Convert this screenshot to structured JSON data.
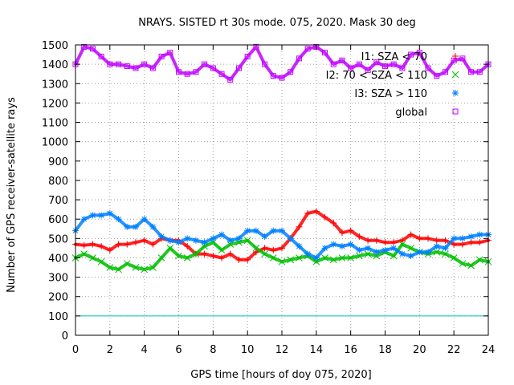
{
  "chart_data": {
    "type": "scatter",
    "title": "NRAYS. SISTED rt 30s mode. 075, 2020. Mask 30 deg",
    "xlabel": "GPS time [hours of doy 075, 2020]",
    "ylabel": "Number of GPS receiver-satellite rays",
    "xlim": [
      0,
      24
    ],
    "ylim": [
      0,
      1500
    ],
    "x_ticks": [
      0,
      2,
      4,
      6,
      8,
      10,
      12,
      14,
      16,
      18,
      20,
      22,
      24
    ],
    "y_ticks": [
      0,
      100,
      200,
      300,
      400,
      500,
      600,
      700,
      800,
      900,
      1000,
      1100,
      1200,
      1300,
      1400,
      1500
    ],
    "x_tick_labels": [
      "0",
      "2",
      "4",
      "6",
      "8",
      "10",
      "12",
      "14",
      "16",
      "18",
      "20",
      "22",
      "24"
    ],
    "y_tick_labels": [
      "0",
      "100",
      "200",
      "300",
      "400",
      "500",
      "600",
      "700",
      "800",
      "900",
      "1000",
      "1100",
      "1200",
      "1300",
      "1400",
      "1500"
    ],
    "grid": true,
    "legend_position": "top-right",
    "series": [
      {
        "name": "I1: SZA < 70",
        "color": "#ff0000",
        "marker": "plus",
        "x": [
          0,
          0.5,
          1,
          1.5,
          2,
          2.5,
          3,
          3.5,
          4,
          4.5,
          5,
          5.5,
          6,
          6.5,
          7,
          7.5,
          8,
          8.5,
          9,
          9.5,
          10,
          10.5,
          11,
          11.5,
          12,
          12.5,
          13,
          13.5,
          14,
          14.5,
          15,
          15.5,
          16,
          16.5,
          17,
          17.5,
          18,
          18.5,
          19,
          19.5,
          20,
          20.5,
          21,
          21.5,
          22,
          22.5,
          23,
          23.5,
          24
        ],
        "y": [
          470,
          465,
          470,
          460,
          440,
          470,
          470,
          480,
          490,
          470,
          500,
          490,
          490,
          460,
          420,
          420,
          410,
          400,
          420,
          390,
          390,
          430,
          450,
          440,
          450,
          500,
          560,
          630,
          640,
          610,
          580,
          530,
          540,
          510,
          490,
          490,
          480,
          480,
          490,
          520,
          500,
          500,
          490,
          490,
          470,
          470,
          480,
          480,
          490
        ]
      },
      {
        "name": "I2: 70 < SZA < 110",
        "color": "#00c000",
        "marker": "cross",
        "x": [
          0,
          0.5,
          1,
          1.5,
          2,
          2.5,
          3,
          3.5,
          4,
          4.5,
          5,
          5.5,
          6,
          6.5,
          7,
          7.5,
          8,
          8.5,
          9,
          9.5,
          10,
          10.5,
          11,
          11.5,
          12,
          12.5,
          13,
          13.5,
          14,
          14.5,
          15,
          15.5,
          16,
          16.5,
          17,
          17.5,
          18,
          18.5,
          19,
          19.5,
          20,
          20.5,
          21,
          21.5,
          22,
          22.5,
          23,
          23.5,
          24
        ],
        "y": [
          400,
          420,
          400,
          380,
          350,
          340,
          370,
          350,
          340,
          350,
          400,
          450,
          410,
          400,
          420,
          460,
          480,
          440,
          470,
          480,
          490,
          450,
          420,
          400,
          380,
          390,
          400,
          410,
          380,
          400,
          390,
          400,
          400,
          410,
          420,
          410,
          430,
          410,
          470,
          450,
          430,
          420,
          430,
          420,
          400,
          370,
          360,
          390,
          380
        ]
      },
      {
        "name": "I3: SZA > 110",
        "color": "#0080ff",
        "marker": "star",
        "x": [
          0,
          0.5,
          1,
          1.5,
          2,
          2.5,
          3,
          3.5,
          4,
          4.5,
          5,
          5.5,
          6,
          6.5,
          7,
          7.5,
          8,
          8.5,
          9,
          9.5,
          10,
          10.5,
          11,
          11.5,
          12,
          12.5,
          13,
          13.5,
          14,
          14.5,
          15,
          15.5,
          16,
          16.5,
          17,
          17.5,
          18,
          18.5,
          19,
          19.5,
          20,
          20.5,
          21,
          21.5,
          22,
          22.5,
          23,
          23.5,
          24
        ],
        "y": [
          540,
          600,
          620,
          620,
          630,
          600,
          560,
          560,
          600,
          560,
          510,
          490,
          480,
          500,
          490,
          480,
          500,
          520,
          490,
          500,
          540,
          540,
          510,
          540,
          540,
          500,
          460,
          420,
          400,
          450,
          470,
          460,
          470,
          440,
          450,
          430,
          440,
          450,
          420,
          410,
          430,
          430,
          460,
          450,
          500,
          500,
          510,
          520,
          520
        ]
      },
      {
        "name": "global",
        "color": "#c000ff",
        "marker": "square",
        "x": [
          0,
          0.5,
          1,
          1.5,
          2,
          2.5,
          3,
          3.5,
          4,
          4.5,
          5,
          5.5,
          6,
          6.5,
          7,
          7.5,
          8,
          8.5,
          9,
          9.5,
          10,
          10.5,
          11,
          11.5,
          12,
          12.5,
          13,
          13.5,
          14,
          14.5,
          15,
          15.5,
          16,
          16.5,
          17,
          17.5,
          18,
          18.5,
          19,
          19.5,
          20,
          20.5,
          21,
          21.5,
          22,
          22.5,
          23,
          23.5,
          24
        ],
        "y": [
          1400,
          1490,
          1480,
          1440,
          1400,
          1400,
          1390,
          1380,
          1400,
          1380,
          1440,
          1460,
          1360,
          1350,
          1360,
          1400,
          1380,
          1350,
          1320,
          1380,
          1440,
          1490,
          1400,
          1340,
          1330,
          1360,
          1430,
          1480,
          1490,
          1460,
          1400,
          1420,
          1380,
          1400,
          1370,
          1410,
          1390,
          1400,
          1380,
          1450,
          1460,
          1380,
          1340,
          1360,
          1420,
          1430,
          1360,
          1360,
          1400
        ]
      }
    ],
    "reference_lines": [
      {
        "name": "threshold-100",
        "y": 100,
        "color": "#00c0c0"
      }
    ]
  }
}
